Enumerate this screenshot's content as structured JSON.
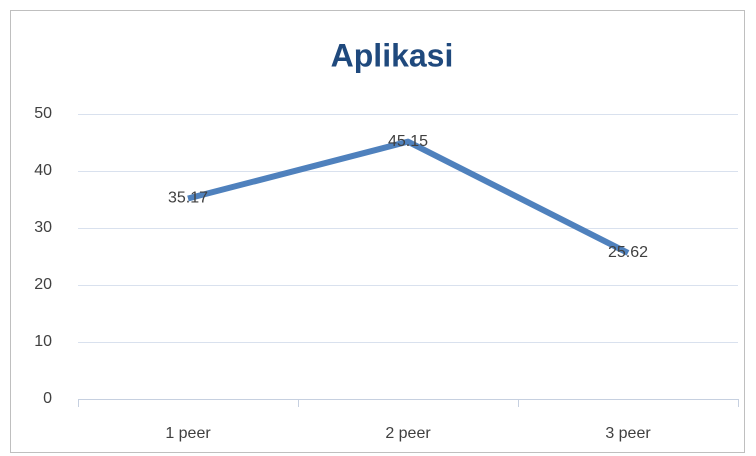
{
  "chart_data": {
    "type": "line",
    "title": "Aplikasi",
    "categories": [
      "1 peer",
      "2 peer",
      "3 peer"
    ],
    "series": [
      {
        "name": "Aplikasi",
        "color": "#4f81bd",
        "values": [
          35.17,
          45.15,
          25.62
        ]
      }
    ],
    "ylim": [
      0,
      50
    ],
    "yticks": [
      0,
      10,
      20,
      30,
      40,
      50
    ],
    "grid": true,
    "data_labels": true
  }
}
